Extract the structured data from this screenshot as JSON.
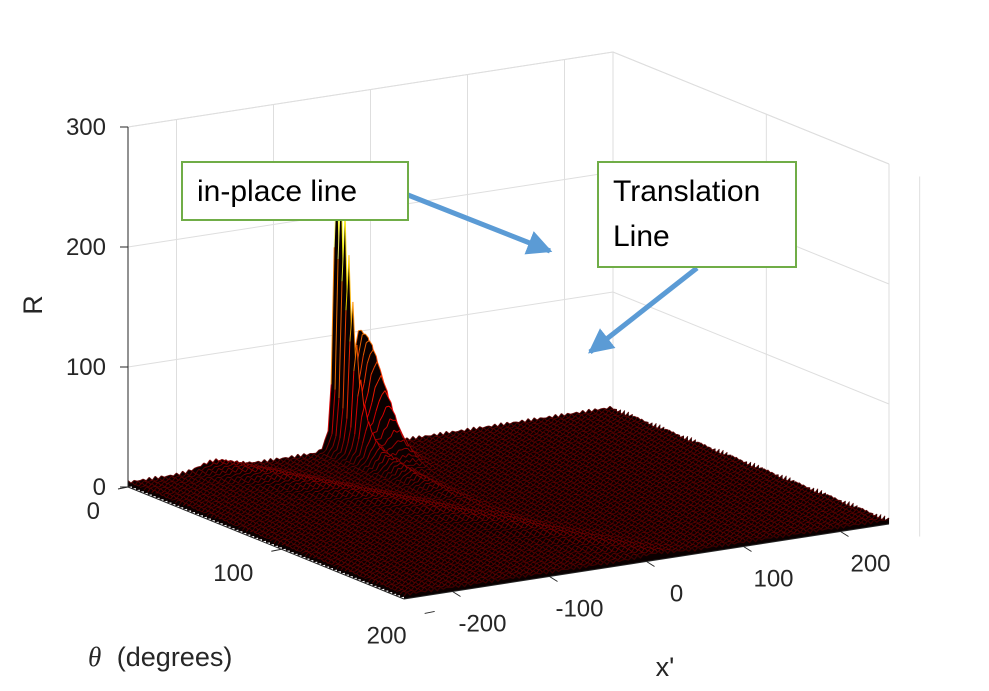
{
  "chart_data": {
    "type": "surface",
    "z_axis": {
      "label": "R",
      "ticks": [
        "0",
        "100",
        "200",
        "300"
      ],
      "range": [
        0,
        300
      ]
    },
    "x_axis": {
      "label": "x'",
      "ticks": [
        "-200",
        "-100",
        "0",
        "100",
        "200"
      ],
      "range": [
        -250,
        250
      ]
    },
    "y_axis": {
      "label": "θ (degrees)",
      "symbol": "θ",
      "unit": "(degrees)",
      "ticks": [
        "0",
        "100",
        "200"
      ],
      "range": [
        0,
        180
      ]
    },
    "grid": true,
    "colormap": "hot",
    "peaks": [
      {
        "name": "in-place line",
        "x": -35,
        "max_R": 200
      },
      {
        "name": "Translation Line",
        "x": -10,
        "max_R": 108
      }
    ],
    "annotations": [
      {
        "lines": [
          "in-place line"
        ]
      },
      {
        "lines": [
          "Translation",
          "Line"
        ]
      }
    ]
  },
  "colors": {
    "arrow": "#5b9bd5",
    "callout_border": "#70ad47",
    "text": "#262626",
    "grid": "#dedede"
  }
}
